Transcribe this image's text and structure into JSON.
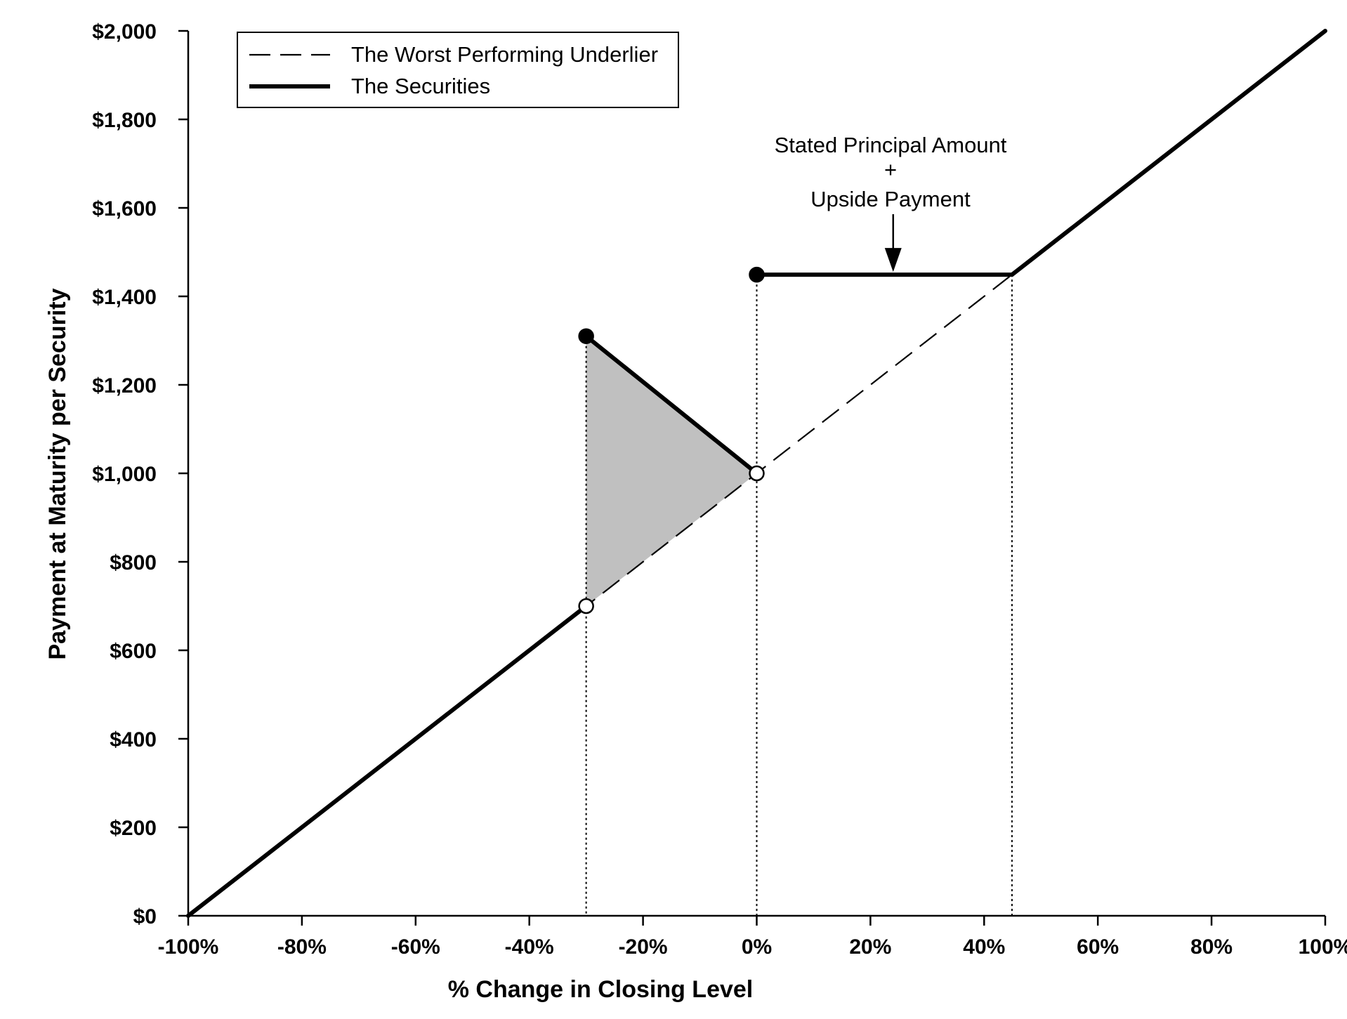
{
  "chart_data": {
    "type": "line",
    "xlabel": "% Change in Closing Level",
    "ylabel": "Payment at Maturity per Security",
    "xlim": [
      -100,
      100
    ],
    "ylim": [
      0,
      2000
    ],
    "x_ticks": [
      -100,
      -80,
      -60,
      -40,
      -20,
      0,
      20,
      40,
      60,
      80,
      100
    ],
    "x_tick_labels": [
      "-100%",
      "-80%",
      "-60%",
      "-40%",
      "-20%",
      "0%",
      "20%",
      "40%",
      "60%",
      "80%",
      "100%"
    ],
    "y_ticks": [
      0,
      200,
      400,
      600,
      800,
      1000,
      1200,
      1400,
      1600,
      1800,
      2000
    ],
    "y_tick_labels": [
      "$0",
      "$200",
      "$400",
      "$600",
      "$800",
      "$1,000",
      "$1,200",
      "$1,400",
      "$1,600",
      "$1,800",
      "$2,000"
    ],
    "grid": false,
    "legend_position": "top-left",
    "series": [
      {
        "name": "The Worst Performing Underlier",
        "style": "dashed",
        "x": [
          -100,
          100
        ],
        "y": [
          0,
          2000
        ]
      },
      {
        "name": "The Securities",
        "style": "solid",
        "segments": [
          {
            "x": [
              -100,
              -30
            ],
            "y": [
              0,
              700
            ]
          },
          {
            "x": [
              -30,
              0
            ],
            "y": [
              1310,
              1000
            ]
          },
          {
            "x": [
              0,
              44.9
            ],
            "y": [
              1449,
              1449
            ]
          },
          {
            "x": [
              44.9,
              100
            ],
            "y": [
              1449,
              2000
            ]
          }
        ]
      }
    ],
    "markers": [
      {
        "x": -30,
        "y": 1310,
        "fill": "filled"
      },
      {
        "x": -30,
        "y": 700,
        "fill": "open"
      },
      {
        "x": 0,
        "y": 1000,
        "fill": "open"
      },
      {
        "x": 0,
        "y": 1449,
        "fill": "filled"
      }
    ],
    "reference_lines": [
      {
        "x": -30,
        "y_top": 1310
      },
      {
        "x": 0,
        "y_top": 1449
      },
      {
        "x": 44.9,
        "y_top": 1449
      }
    ],
    "shaded_region": {
      "x": [
        -30,
        -30,
        0
      ],
      "y": [
        700,
        1310,
        1000
      ],
      "color": "#c0c0c0"
    },
    "annotation": {
      "lines": [
        "Stated Principal Amount",
        "+",
        "Upside Payment"
      ],
      "arrow_to": {
        "x": 24,
        "y": 1449
      }
    }
  }
}
